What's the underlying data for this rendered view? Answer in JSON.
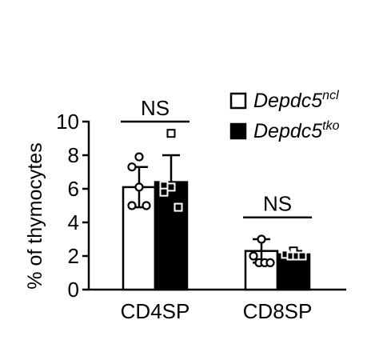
{
  "chart_data": {
    "type": "bar",
    "categories": [
      "CD4SP",
      "CD8SP"
    ],
    "ylabel": "% of thymocytes",
    "ylim": [
      0,
      10
    ],
    "yticks": [
      0,
      2,
      4,
      6,
      8,
      10
    ],
    "grid": false,
    "legend_position": "top-right",
    "series": [
      {
        "name_base": "Depdc5",
        "name_sup": "ncl",
        "fill": "#ffffff",
        "stroke": "#000000",
        "marker": "circle",
        "values": [
          6.1,
          2.3
        ],
        "errors": [
          1.2,
          0.7
        ],
        "points": [
          [
            7.9,
            7.3,
            6.1,
            5.0,
            5.0
          ],
          [
            3.0,
            2.0,
            1.6,
            1.6,
            1.6
          ]
        ]
      },
      {
        "name_base": "Depdc5",
        "name_sup": "tko",
        "fill": "#000000",
        "stroke": "#000000",
        "marker": "square",
        "values": [
          6.4,
          2.1
        ],
        "errors": [
          1.6,
          0.2
        ],
        "points": [
          [
            9.3,
            6.2,
            6.1,
            5.8,
            4.9
          ],
          [
            2.3,
            2.1,
            2.0,
            2.0,
            2.0
          ]
        ]
      }
    ],
    "annotations": [
      {
        "category": "CD4SP",
        "text": "NS",
        "bracket_y": 10.0
      },
      {
        "category": "CD8SP",
        "text": "NS",
        "bracket_y": 4.3
      }
    ]
  }
}
